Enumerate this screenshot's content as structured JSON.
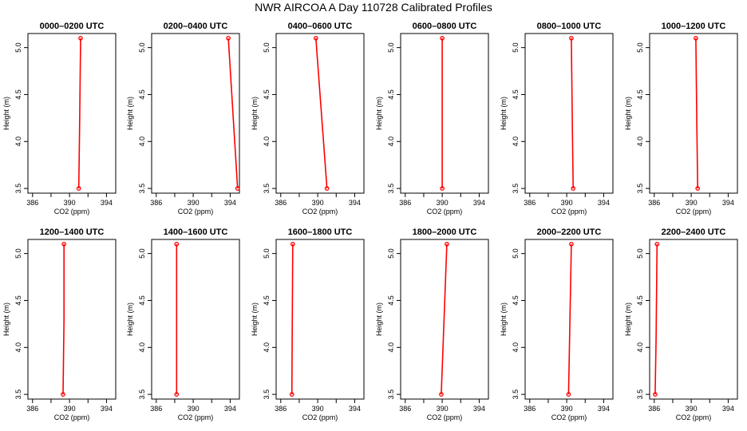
{
  "main_title": "NWR AIRCOA A  Day 110728  Calibrated Profiles",
  "colors": {
    "line": "#ff0000",
    "axis": "#000000",
    "background": "#ffffff"
  },
  "chart_data": [
    {
      "type": "line",
      "title": "0000–0200 UTC",
      "xlabel": "CO2 (ppm)",
      "ylabel": "Height (m)",
      "xlim": [
        385.5,
        395
      ],
      "ylim": [
        3.45,
        5.15
      ],
      "xticks": [
        "386",
        "390",
        "394"
      ],
      "yticks": [
        "3.5",
        "4.0",
        "4.5",
        "5.0"
      ],
      "points": [
        {
          "x": 391.0,
          "y": 3.5
        },
        {
          "x": 391.1,
          "y": 4.2
        },
        {
          "x": 391.2,
          "y": 5.1
        }
      ]
    },
    {
      "type": "line",
      "title": "0200–0400 UTC",
      "xlabel": "CO2 (ppm)",
      "ylabel": "Height (m)",
      "xlim": [
        385.5,
        395
      ],
      "ylim": [
        3.45,
        5.15
      ],
      "xticks": [
        "386",
        "390",
        "394"
      ],
      "yticks": [
        "3.5",
        "4.0",
        "4.5",
        "5.0"
      ],
      "points": [
        {
          "x": 394.8,
          "y": 3.5
        },
        {
          "x": 393.8,
          "y": 5.1
        }
      ]
    },
    {
      "type": "line",
      "title": "0400–0600 UTC",
      "xlabel": "CO2 (ppm)",
      "ylabel": "Height (m)",
      "xlim": [
        385.5,
        395
      ],
      "ylim": [
        3.45,
        5.15
      ],
      "xticks": [
        "386",
        "390",
        "394"
      ],
      "yticks": [
        "3.5",
        "4.0",
        "4.5",
        "5.0"
      ],
      "points": [
        {
          "x": 391.0,
          "y": 3.5
        },
        {
          "x": 389.8,
          "y": 5.1
        }
      ]
    },
    {
      "type": "line",
      "title": "0600–0800 UTC",
      "xlabel": "CO2 (ppm)",
      "ylabel": "Height (m)",
      "xlim": [
        385.5,
        395
      ],
      "ylim": [
        3.45,
        5.15
      ],
      "xticks": [
        "386",
        "390",
        "394"
      ],
      "yticks": [
        "3.5",
        "4.0",
        "4.5",
        "5.0"
      ],
      "points": [
        {
          "x": 390.0,
          "y": 3.5
        },
        {
          "x": 390.0,
          "y": 5.1
        }
      ]
    },
    {
      "type": "line",
      "title": "0800–1000 UTC",
      "xlabel": "CO2 (ppm)",
      "ylabel": "Height (m)",
      "xlim": [
        385.5,
        395
      ],
      "ylim": [
        3.45,
        5.15
      ],
      "xticks": [
        "386",
        "390",
        "394"
      ],
      "yticks": [
        "3.5",
        "4.0",
        "4.5",
        "5.0"
      ],
      "points": [
        {
          "x": 390.7,
          "y": 3.5
        },
        {
          "x": 390.6,
          "y": 4.2
        },
        {
          "x": 390.5,
          "y": 5.1
        }
      ]
    },
    {
      "type": "line",
      "title": "1000–1200 UTC",
      "xlabel": "CO2 (ppm)",
      "ylabel": "Height (m)",
      "xlim": [
        385.5,
        395
      ],
      "ylim": [
        3.45,
        5.15
      ],
      "xticks": [
        "386",
        "390",
        "394"
      ],
      "yticks": [
        "3.5",
        "4.0",
        "4.5",
        "5.0"
      ],
      "points": [
        {
          "x": 390.7,
          "y": 3.5
        },
        {
          "x": 390.6,
          "y": 4.2
        },
        {
          "x": 390.5,
          "y": 5.1
        }
      ]
    },
    {
      "type": "line",
      "title": "1200–1400 UTC",
      "xlabel": "CO2 (ppm)",
      "ylabel": "Height (m)",
      "xlim": [
        385.5,
        395
      ],
      "ylim": [
        3.45,
        5.15
      ],
      "xticks": [
        "386",
        "390",
        "394"
      ],
      "yticks": [
        "3.5",
        "4.0",
        "4.5",
        "5.0"
      ],
      "points": [
        {
          "x": 389.3,
          "y": 3.5
        },
        {
          "x": 389.4,
          "y": 4.3
        },
        {
          "x": 389.4,
          "y": 5.1
        }
      ]
    },
    {
      "type": "line",
      "title": "1400–1600 UTC",
      "xlabel": "CO2 (ppm)",
      "ylabel": "Height (m)",
      "xlim": [
        385.5,
        395
      ],
      "ylim": [
        3.45,
        5.15
      ],
      "xticks": [
        "386",
        "390",
        "394"
      ],
      "yticks": [
        "3.5",
        "4.0",
        "4.5",
        "5.0"
      ],
      "points": [
        {
          "x": 388.2,
          "y": 3.5
        },
        {
          "x": 388.2,
          "y": 5.1
        }
      ]
    },
    {
      "type": "line",
      "title": "1600–1800 UTC",
      "xlabel": "CO2 (ppm)",
      "ylabel": "Height (m)",
      "xlim": [
        385.5,
        395
      ],
      "ylim": [
        3.45,
        5.15
      ],
      "xticks": [
        "386",
        "390",
        "394"
      ],
      "yticks": [
        "3.5",
        "4.0",
        "4.5",
        "5.0"
      ],
      "points": [
        {
          "x": 387.2,
          "y": 3.5
        },
        {
          "x": 387.3,
          "y": 5.1
        }
      ]
    },
    {
      "type": "line",
      "title": "1800–2000 UTC",
      "xlabel": "CO2 (ppm)",
      "ylabel": "Height (m)",
      "xlim": [
        385.5,
        395
      ],
      "ylim": [
        3.45,
        5.15
      ],
      "xticks": [
        "386",
        "390",
        "394"
      ],
      "yticks": [
        "3.5",
        "4.0",
        "4.5",
        "5.0"
      ],
      "points": [
        {
          "x": 389.9,
          "y": 3.5
        },
        {
          "x": 390.5,
          "y": 5.1
        }
      ]
    },
    {
      "type": "line",
      "title": "2000–2200 UTC",
      "xlabel": "CO2 (ppm)",
      "ylabel": "Height (m)",
      "xlim": [
        385.5,
        395
      ],
      "ylim": [
        3.45,
        5.15
      ],
      "xticks": [
        "386",
        "390",
        "394"
      ],
      "yticks": [
        "3.5",
        "4.0",
        "4.5",
        "5.0"
      ],
      "points": [
        {
          "x": 390.2,
          "y": 3.5
        },
        {
          "x": 390.5,
          "y": 5.1
        }
      ]
    },
    {
      "type": "line",
      "title": "2200–2400 UTC",
      "xlabel": "CO2 (ppm)",
      "ylabel": "Height (m)",
      "xlim": [
        385.5,
        395
      ],
      "ylim": [
        3.45,
        5.15
      ],
      "xticks": [
        "386",
        "390",
        "394"
      ],
      "yticks": [
        "3.5",
        "4.0",
        "4.5",
        "5.0"
      ],
      "points": [
        {
          "x": 386.1,
          "y": 3.5
        },
        {
          "x": 386.2,
          "y": 4.1
        },
        {
          "x": 386.3,
          "y": 5.1
        }
      ]
    }
  ]
}
